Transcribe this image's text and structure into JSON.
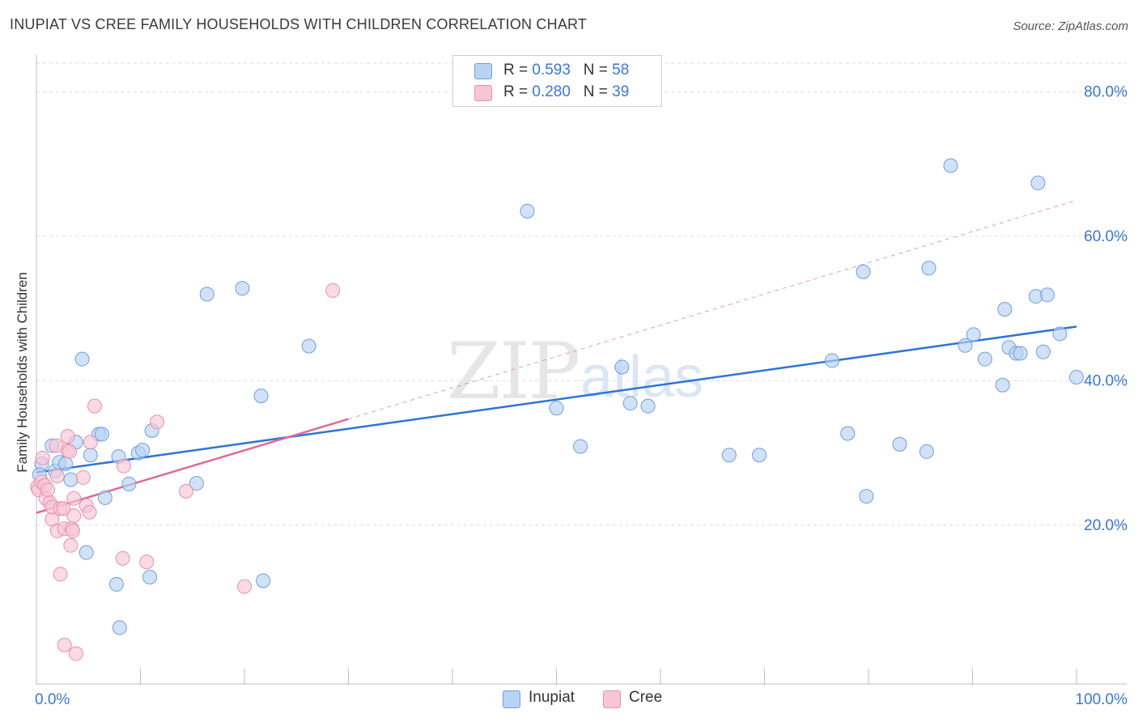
{
  "title": "INUPIAT VS CREE FAMILY HOUSEHOLDS WITH CHILDREN CORRELATION CHART",
  "source": "Source: ZipAtlas.com",
  "legend": {
    "inupiat": {
      "r_label": "R =",
      "r_value": "0.593",
      "n_label": "N =",
      "n_value": "58"
    },
    "cree": {
      "r_label": "R =",
      "r_value": "0.280",
      "n_label": "N =",
      "n_value": "39"
    }
  },
  "colors": {
    "inupiat_fill": "#b9d3f3",
    "inupiat_stroke": "#6f9fdd",
    "inupiat_line": "#2e74d6",
    "cree_fill": "#f7c6d5",
    "cree_stroke": "#e88fae",
    "cree_line": "#e06b97",
    "grid": "#dcdcdc",
    "tick_text": "#3a78d4"
  },
  "chart_data": {
    "type": "scatter",
    "title": "INUPIAT VS CREE FAMILY HOUSEHOLDS WITH CHILDREN CORRELATION CHART",
    "xlabel": "",
    "ylabel": "Family Households with Children",
    "xlim": [
      0,
      100
    ],
    "ylim": [
      -2,
      84
    ],
    "x_tick_labels": [
      "0.0%",
      "100.0%"
    ],
    "y_ticks": [
      20,
      40,
      60,
      80
    ],
    "y_tick_labels": [
      "20.0%",
      "40.0%",
      "60.0%",
      "80.0%"
    ],
    "grid": true,
    "legend_placement": "top-center",
    "watermark": "ZIPatlas",
    "series": [
      {
        "name": "Inupiat",
        "points": [
          [
            0.5,
            28.5
          ],
          [
            1.5,
            31
          ],
          [
            1.8,
            27.5
          ],
          [
            2.2,
            28.7
          ],
          [
            2.8,
            28.5
          ],
          [
            3.3,
            26.3
          ],
          [
            3.8,
            31.5
          ],
          [
            4.4,
            43
          ],
          [
            4.8,
            16.2
          ],
          [
            5.2,
            29.7
          ],
          [
            6.0,
            32.6
          ],
          [
            6.3,
            32.6
          ],
          [
            6.6,
            23.8
          ],
          [
            7.7,
            11.8
          ],
          [
            7.9,
            29.5
          ],
          [
            8.0,
            5.8
          ],
          [
            8.9,
            25.7
          ],
          [
            9.8,
            30.0
          ],
          [
            10.2,
            30.4
          ],
          [
            10.9,
            12.8
          ],
          [
            11.1,
            33.1
          ],
          [
            15.4,
            25.8
          ],
          [
            16.4,
            52.0
          ],
          [
            19.8,
            52.8
          ],
          [
            21.6,
            37.9
          ],
          [
            21.8,
            12.3
          ],
          [
            26.2,
            44.8
          ],
          [
            47.2,
            63.5
          ],
          [
            50.0,
            36.2
          ],
          [
            52.3,
            30.9
          ],
          [
            56.3,
            41.9
          ],
          [
            57.1,
            36.9
          ],
          [
            58.8,
            36.5
          ],
          [
            66.6,
            29.7
          ],
          [
            69.5,
            29.7
          ],
          [
            76.5,
            42.8
          ],
          [
            78.0,
            32.7
          ],
          [
            79.5,
            55.1
          ],
          [
            79.8,
            24.0
          ],
          [
            83.0,
            31.2
          ],
          [
            85.6,
            30.2
          ],
          [
            85.8,
            55.6
          ],
          [
            87.9,
            69.8
          ],
          [
            89.3,
            44.9
          ],
          [
            90.1,
            46.4
          ],
          [
            91.2,
            43.0
          ],
          [
            92.9,
            39.4
          ],
          [
            93.1,
            49.9
          ],
          [
            93.5,
            44.6
          ],
          [
            94.2,
            43.8
          ],
          [
            94.6,
            43.8
          ],
          [
            96.1,
            51.7
          ],
          [
            96.3,
            67.4
          ],
          [
            96.8,
            44.0
          ],
          [
            97.2,
            51.9
          ],
          [
            98.4,
            46.5
          ],
          [
            100.0,
            40.5
          ],
          [
            0.3,
            27.0
          ]
        ],
        "trend": {
          "x": [
            0,
            100
          ],
          "y": [
            27.3,
            47.5
          ],
          "style": "solid"
        }
      },
      {
        "name": "Cree",
        "points": [
          [
            0.1,
            25.3
          ],
          [
            0.2,
            24.9
          ],
          [
            0.5,
            26.0
          ],
          [
            0.6,
            29.3
          ],
          [
            0.8,
            25.5
          ],
          [
            0.9,
            23.7
          ],
          [
            1.1,
            24.9
          ],
          [
            1.3,
            23.1
          ],
          [
            1.5,
            20.8
          ],
          [
            1.5,
            22.5
          ],
          [
            1.9,
            31.0
          ],
          [
            2.0,
            26.8
          ],
          [
            2.0,
            19.2
          ],
          [
            2.3,
            22.3
          ],
          [
            2.3,
            13.2
          ],
          [
            2.6,
            22.3
          ],
          [
            2.7,
            19.5
          ],
          [
            2.7,
            3.4
          ],
          [
            3.0,
            30.3
          ],
          [
            3.0,
            32.3
          ],
          [
            3.2,
            30.2
          ],
          [
            3.3,
            17.2
          ],
          [
            3.4,
            19.5
          ],
          [
            3.5,
            19.2
          ],
          [
            3.6,
            21.3
          ],
          [
            3.6,
            23.7
          ],
          [
            3.8,
            2.2
          ],
          [
            4.5,
            26.6
          ],
          [
            4.8,
            22.7
          ],
          [
            5.1,
            21.8
          ],
          [
            5.2,
            31.5
          ],
          [
            5.6,
            36.5
          ],
          [
            8.3,
            15.4
          ],
          [
            8.4,
            28.2
          ],
          [
            10.6,
            14.9
          ],
          [
            11.6,
            34.3
          ],
          [
            14.4,
            24.7
          ],
          [
            20.0,
            11.5
          ],
          [
            28.5,
            52.5
          ]
        ],
        "trend": {
          "x": [
            0,
            30
          ],
          "y": [
            21.7,
            34.7
          ],
          "style": "solid"
        },
        "trend_extension": {
          "x": [
            30,
            100
          ],
          "y": [
            34.7,
            65.0
          ],
          "style": "dashed"
        }
      }
    ]
  },
  "bottom_legend": {
    "inupiat": "Inupiat",
    "cree": "Cree"
  }
}
